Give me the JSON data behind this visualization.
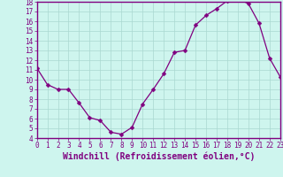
{
  "x": [
    0,
    1,
    2,
    3,
    4,
    5,
    6,
    7,
    8,
    9,
    10,
    11,
    12,
    13,
    14,
    15,
    16,
    17,
    18,
    19,
    20,
    21,
    22,
    23
  ],
  "y": [
    11.2,
    9.5,
    9.0,
    9.0,
    7.6,
    6.1,
    5.8,
    4.6,
    4.4,
    5.1,
    7.5,
    9.0,
    10.6,
    12.8,
    13.0,
    15.6,
    16.6,
    17.3,
    18.1,
    18.3,
    17.8,
    15.8,
    12.2,
    10.3
  ],
  "line_color": "#800080",
  "marker": "D",
  "marker_size": 2.5,
  "background_color": "#cef5ee",
  "grid_color": "#aad8d0",
  "xlabel": "Windchill (Refroidissement éolien,°C)",
  "xlim": [
    0,
    23
  ],
  "ylim": [
    4,
    18
  ],
  "yticks": [
    4,
    5,
    6,
    7,
    8,
    9,
    10,
    11,
    12,
    13,
    14,
    15,
    16,
    17,
    18
  ],
  "xticks": [
    0,
    1,
    2,
    3,
    4,
    5,
    6,
    7,
    8,
    9,
    10,
    11,
    12,
    13,
    14,
    15,
    16,
    17,
    18,
    19,
    20,
    21,
    22,
    23
  ],
  "tick_label_fontsize": 5.5,
  "xlabel_fontsize": 7.0,
  "axis_color": "#800080",
  "tick_color": "#800080",
  "spine_color": "#800080"
}
